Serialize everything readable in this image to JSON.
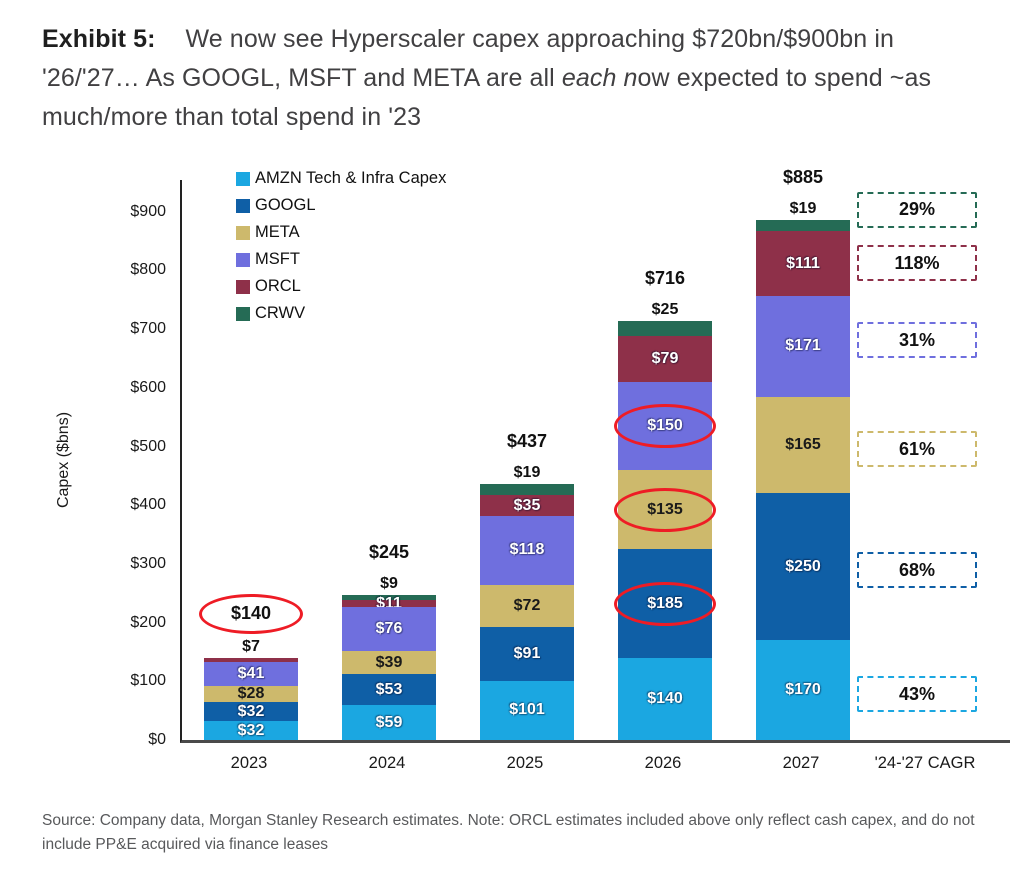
{
  "header": {
    "exhibit_label": "Exhibit 5:",
    "title_part1": "We now see Hyperscaler capex approaching $720bn/$900bn in '26/'27… As GOOGL, MSFT and META are all ",
    "title_italic": "each n",
    "title_part2": "ow expected to spend ~as much/more than total spend in '23"
  },
  "footer": {
    "source": "Source: Company data, Morgan Stanley Research estimates. Note: ORCL estimates included above only reflect cash capex, and do not include PP&E acquired via finance leases"
  },
  "chart_data": {
    "type": "bar",
    "subtype": "stacked",
    "title": "Hyperscaler Capex by company, 2023-2027, with '24-'27 CAGR",
    "ylabel": "Capex ($bns)",
    "xlabel": "",
    "ylim": [
      0,
      950
    ],
    "grid": false,
    "legend_position": "top-left",
    "highlight_color": "#EE1C25",
    "yticks": [
      "$0",
      "$100",
      "$200",
      "$300",
      "$400",
      "$500",
      "$600",
      "$700",
      "$800",
      "$900"
    ],
    "ytick_values": [
      0,
      100,
      200,
      300,
      400,
      500,
      600,
      700,
      800,
      900
    ],
    "categories": [
      "2023",
      "2024",
      "2025",
      "2026",
      "2027",
      "'24-'27 CAGR"
    ],
    "companies": [
      {
        "key": "AMZN",
        "label": "AMZN Tech & Infra Capex",
        "color": "#1BA7E1",
        "label_color": "#ffffff"
      },
      {
        "key": "GOOGL",
        "label": "GOOGL",
        "color": "#0F5FA6",
        "label_color": "#ffffff"
      },
      {
        "key": "META",
        "label": "META",
        "color": "#CDB96C",
        "label_color": "#1a1a1a"
      },
      {
        "key": "MSFT",
        "label": "MSFT",
        "color": "#6F6FDE",
        "label_color": "#ffffff"
      },
      {
        "key": "ORCL",
        "label": "ORCL",
        "color": "#8E3049",
        "label_color": "#ffffff"
      },
      {
        "key": "CRWV",
        "label": "CRWV",
        "color": "#256B55",
        "label_color": "#ffffff"
      }
    ],
    "bars": [
      {
        "year": "2023",
        "total_label": "$140",
        "total_circled": true,
        "above_label": "$7",
        "segments": [
          {
            "company": "AMZN",
            "value": 32,
            "label": "$32",
            "label_pos": "inside",
            "circled": false
          },
          {
            "company": "GOOGL",
            "value": 32,
            "label": "$32",
            "label_pos": "inside",
            "circled": false
          },
          {
            "company": "META",
            "value": 28,
            "label": "$28",
            "label_pos": "inside",
            "circled": false
          },
          {
            "company": "MSFT",
            "value": 41,
            "label": "$41",
            "label_pos": "inside",
            "circled": false
          },
          {
            "company": "ORCL",
            "value": 7,
            "label": "$7",
            "label_pos": "above",
            "circled": false
          }
        ]
      },
      {
        "year": "2024",
        "total_label": "$245",
        "total_circled": false,
        "above_label": "$9",
        "segments": [
          {
            "company": "AMZN",
            "value": 59,
            "label": "$59",
            "label_pos": "inside",
            "circled": false
          },
          {
            "company": "GOOGL",
            "value": 53,
            "label": "$53",
            "label_pos": "inside",
            "circled": false
          },
          {
            "company": "META",
            "value": 39,
            "label": "$39",
            "label_pos": "inside",
            "circled": false
          },
          {
            "company": "MSFT",
            "value": 76,
            "label": "$76",
            "label_pos": "inside",
            "circled": false
          },
          {
            "company": "ORCL",
            "value": 11,
            "label": "$11",
            "label_pos": "inside",
            "circled": false
          },
          {
            "company": "CRWV",
            "value": 9,
            "label": "$9",
            "label_pos": "above",
            "circled": false
          }
        ]
      },
      {
        "year": "2025",
        "total_label": "$437",
        "total_circled": false,
        "above_label": "$19",
        "segments": [
          {
            "company": "AMZN",
            "value": 101,
            "label": "$101",
            "label_pos": "inside",
            "circled": false
          },
          {
            "company": "GOOGL",
            "value": 91,
            "label": "$91",
            "label_pos": "inside",
            "circled": false
          },
          {
            "company": "META",
            "value": 72,
            "label": "$72",
            "label_pos": "inside",
            "circled": false
          },
          {
            "company": "MSFT",
            "value": 118,
            "label": "$118",
            "label_pos": "inside",
            "circled": false
          },
          {
            "company": "ORCL",
            "value": 35,
            "label": "$35",
            "label_pos": "inside",
            "circled": false
          },
          {
            "company": "CRWV",
            "value": 19,
            "label": "$19",
            "label_pos": "above",
            "circled": false
          }
        ]
      },
      {
        "year": "2026",
        "total_label": "$716",
        "total_circled": false,
        "above_label": "$25",
        "segments": [
          {
            "company": "AMZN",
            "value": 140,
            "label": "$140",
            "label_pos": "inside",
            "circled": false
          },
          {
            "company": "GOOGL",
            "value": 185,
            "label": "$185",
            "label_pos": "inside",
            "circled": true
          },
          {
            "company": "META",
            "value": 135,
            "label": "$135",
            "label_pos": "inside",
            "circled": true
          },
          {
            "company": "MSFT",
            "value": 150,
            "label": "$150",
            "label_pos": "inside",
            "circled": true
          },
          {
            "company": "ORCL",
            "value": 79,
            "label": "$79",
            "label_pos": "inside",
            "circled": false
          },
          {
            "company": "CRWV",
            "value": 25,
            "label": "$25",
            "label_pos": "above",
            "circled": false
          }
        ]
      },
      {
        "year": "2027",
        "total_label": "$885",
        "total_circled": false,
        "above_label": "$19",
        "segments": [
          {
            "company": "AMZN",
            "value": 170,
            "label": "$170",
            "label_pos": "inside",
            "circled": false
          },
          {
            "company": "GOOGL",
            "value": 250,
            "label": "$250",
            "label_pos": "inside",
            "circled": false
          },
          {
            "company": "META",
            "value": 165,
            "label": "$165",
            "label_pos": "inside",
            "circled": false
          },
          {
            "company": "MSFT",
            "value": 171,
            "label": "$171",
            "label_pos": "inside",
            "circled": false
          },
          {
            "company": "ORCL",
            "value": 111,
            "label": "$111",
            "label_pos": "inside",
            "circled": false
          },
          {
            "company": "CRWV",
            "value": 19,
            "label": "$19",
            "label_pos": "above",
            "circled": false
          }
        ]
      }
    ],
    "cagr_column": {
      "axis_label": "'24-'27 CAGR",
      "boxes": [
        {
          "company": "CRWV",
          "value": "29%",
          "center_bn": 905
        },
        {
          "company": "ORCL",
          "value": "118%",
          "center_bn": 814
        },
        {
          "company": "MSFT",
          "value": "31%",
          "center_bn": 683
        },
        {
          "company": "META",
          "value": "61%",
          "center_bn": 497
        },
        {
          "company": "GOOGL",
          "value": "68%",
          "center_bn": 291
        },
        {
          "company": "AMZN",
          "value": "43%",
          "center_bn": 80
        }
      ]
    }
  }
}
